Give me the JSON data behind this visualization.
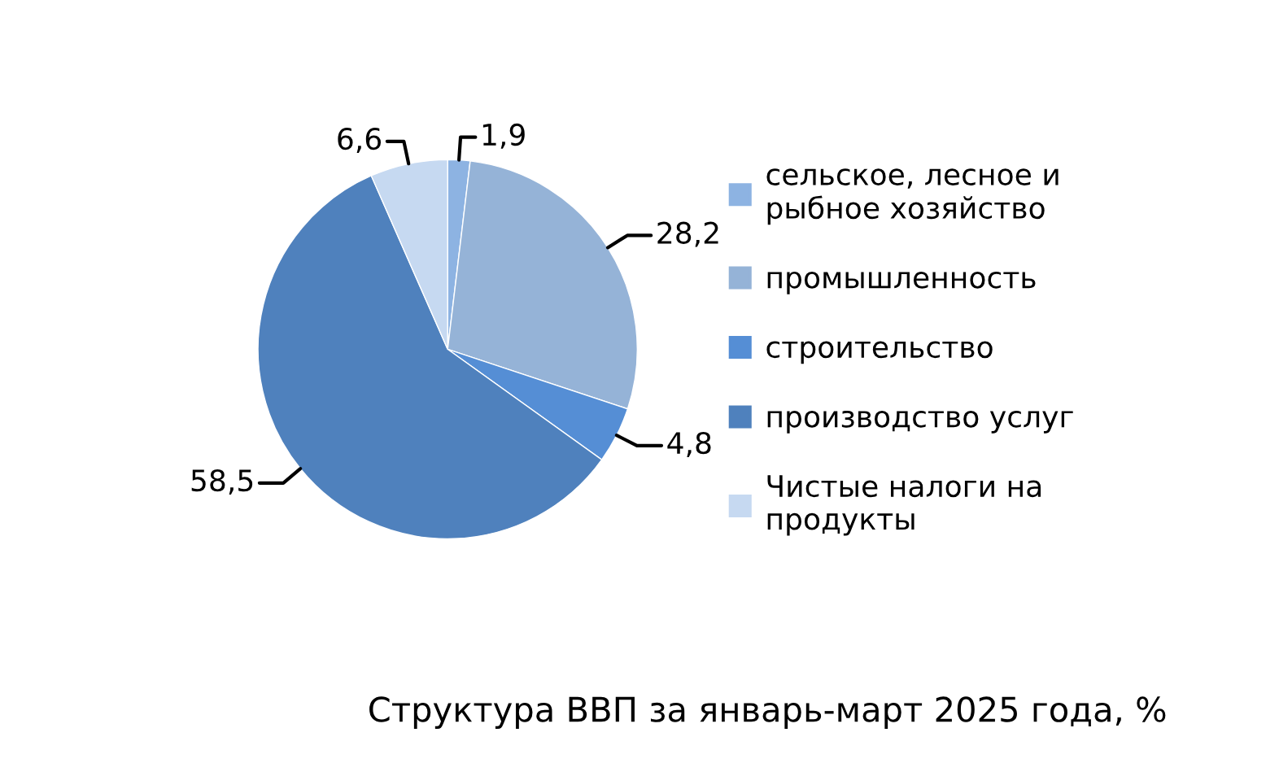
{
  "chart_data": {
    "type": "pie",
    "title": "Структура ВВП за январь-март 2025 года, %",
    "categories": [
      "сельское, лесное и рыбное хозяйство",
      "промышленность",
      "строительство",
      "производство услуг",
      "Чистые налоги на продукты"
    ],
    "values": [
      1.9,
      28.2,
      4.8,
      58.5,
      6.6
    ],
    "value_labels": [
      "1,9",
      "28,2",
      "4,8",
      "58,5",
      "6,6"
    ],
    "colors": [
      "#8db3e2",
      "#95b3d7",
      "#558ed5",
      "#4f81bd",
      "#c6d9f1"
    ],
    "legend": "right"
  }
}
